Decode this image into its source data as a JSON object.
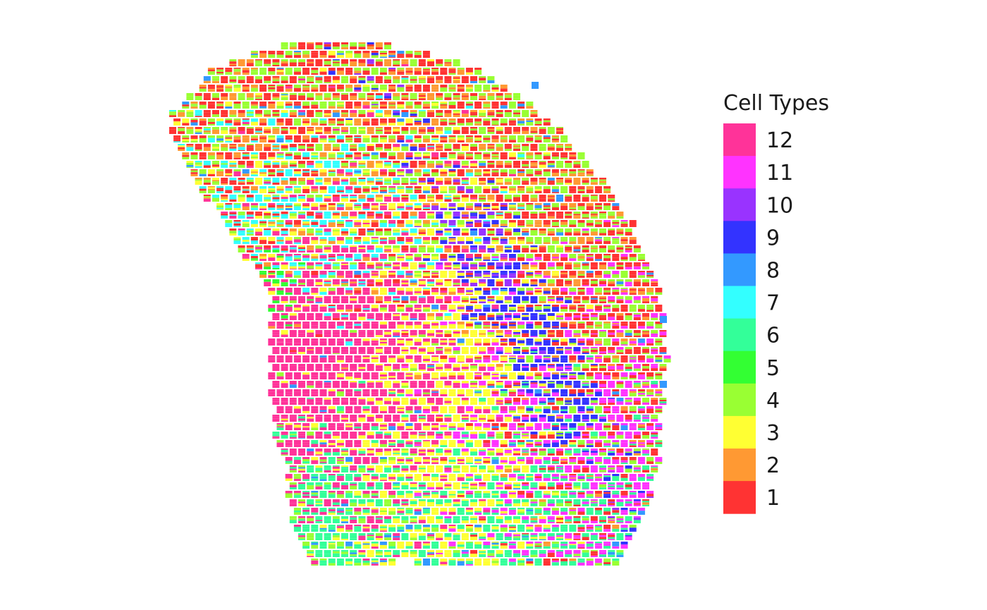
{
  "chart_data": {
    "type": "scatter",
    "description_kind": "spatial cell-type composition plot (each spot drawn as stacked colored bars)",
    "title": "",
    "xlabel": "",
    "ylabel": "",
    "axes_visible": false,
    "grid": false,
    "legend_position": "right",
    "legend": {
      "title": "Cell Types",
      "entries": [
        {
          "label": "12",
          "color": "#FF3399"
        },
        {
          "label": "11",
          "color": "#FF33FF"
        },
        {
          "label": "10",
          "color": "#9933FF"
        },
        {
          "label": "9",
          "color": "#3333FF"
        },
        {
          "label": "8",
          "color": "#3399FF"
        },
        {
          "label": "7",
          "color": "#33FFFF"
        },
        {
          "label": "6",
          "color": "#33FF99"
        },
        {
          "label": "5",
          "color": "#33FF33"
        },
        {
          "label": "4",
          "color": "#99FF33"
        },
        {
          "label": "3",
          "color": "#FFFF33"
        },
        {
          "label": "2",
          "color": "#FF9933"
        },
        {
          "label": "1",
          "color": "#FF3333"
        }
      ]
    },
    "regions": [
      {
        "cell_type": "1",
        "area": "upper band / right flank",
        "dominance": "mixed with 4 and 2"
      },
      {
        "cell_type": "7",
        "area": "upper-left interior",
        "dominance": "mixed with 3"
      },
      {
        "cell_type": "12",
        "area": "left-center block",
        "dominance": "strong"
      },
      {
        "cell_type": "3",
        "area": "center stripe",
        "dominance": "mixed"
      },
      {
        "cell_type": "9",
        "area": "center-right diagonal stripe",
        "dominance": "strong"
      },
      {
        "cell_type": "10",
        "area": "upper part of 9 stripe",
        "dominance": "mixed"
      },
      {
        "cell_type": "6",
        "area": "bottom-left lobe",
        "dominance": "mixed with 4"
      },
      {
        "cell_type": "11",
        "area": "lower-right region",
        "dominance": "mixed with 6"
      },
      {
        "cell_type": "8",
        "area": "scattered edge spots",
        "dominance": "sparse"
      },
      {
        "cell_type": "5",
        "area": "small left cluster",
        "dominance": "sparse"
      }
    ]
  }
}
